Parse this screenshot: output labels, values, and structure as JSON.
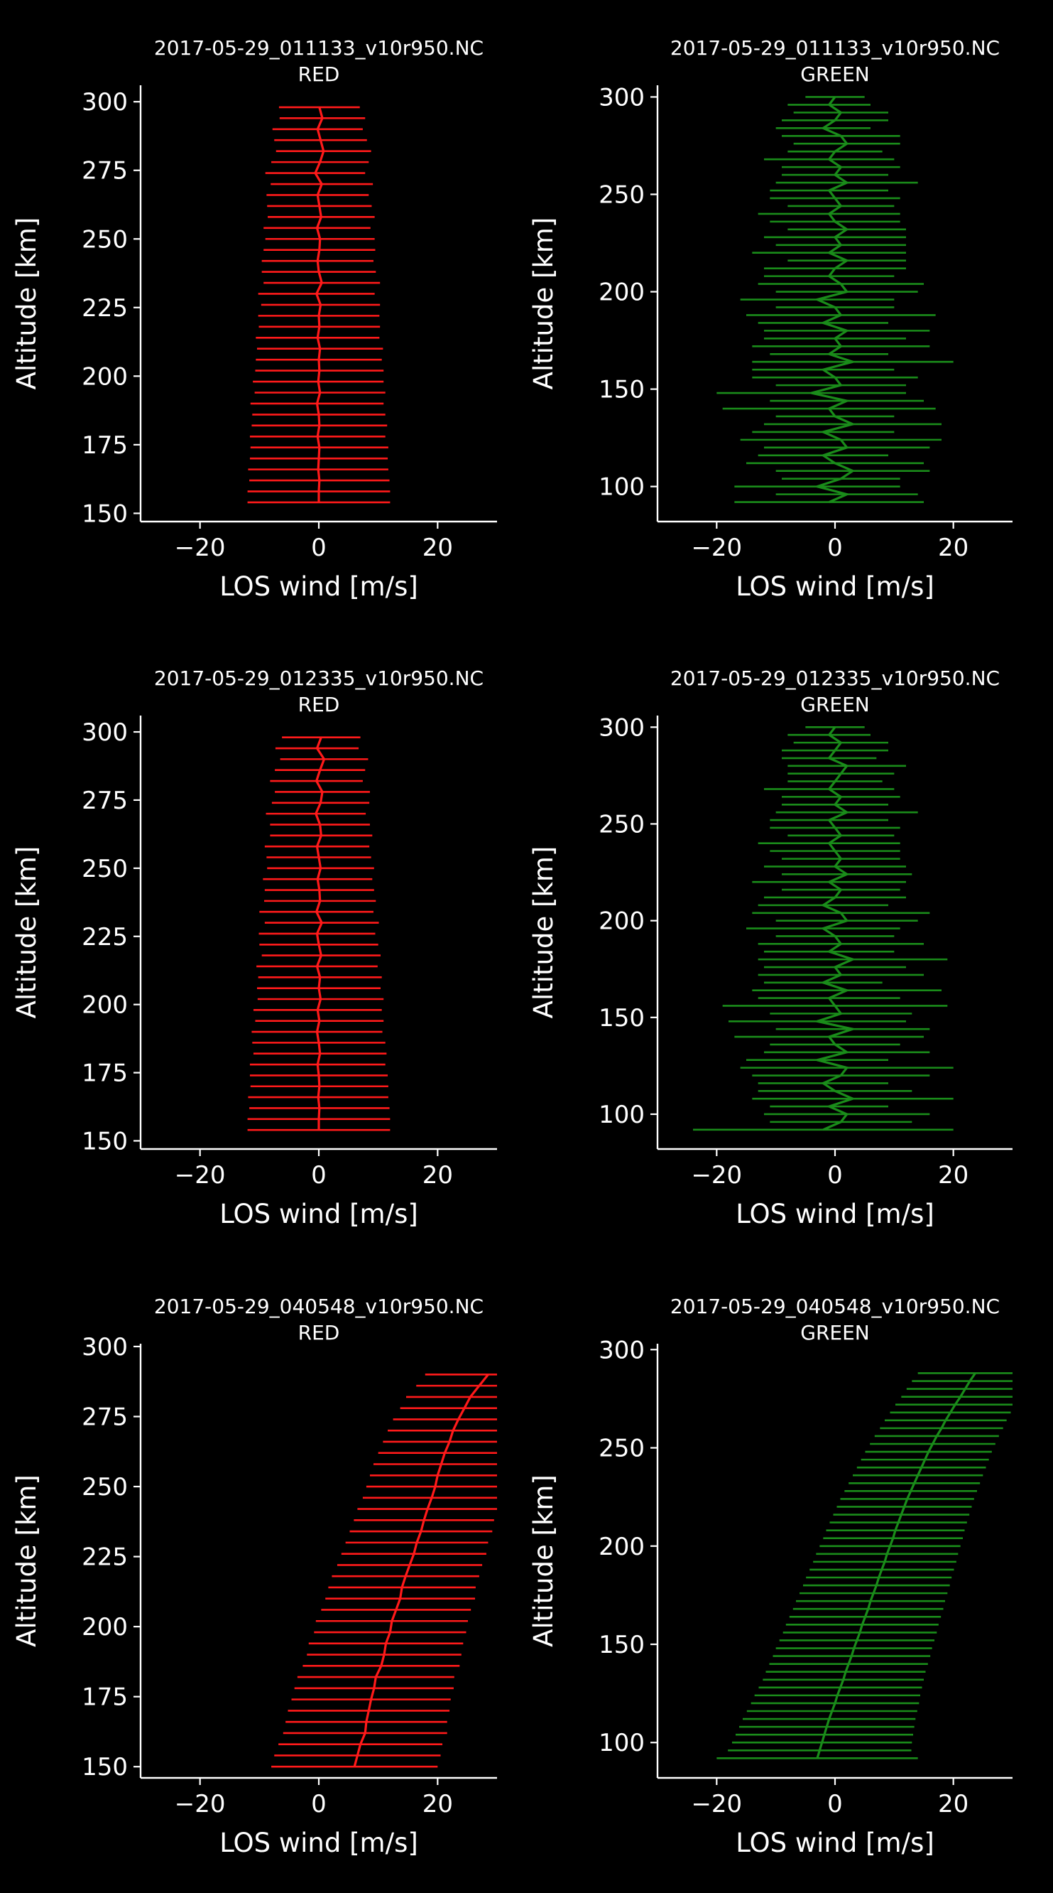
{
  "chart_data": [
    {
      "type": "line",
      "panel": 1,
      "title_file": "2017-05-29_011133_v10r950.NC",
      "title_channel": "RED",
      "xlabel": "LOS wind [m/s]",
      "ylabel": "Altitude [km]",
      "xlim": [
        -30,
        30
      ],
      "ylim": [
        147,
        306
      ],
      "xticks": [
        -20,
        0,
        20
      ],
      "yticks": [
        150,
        175,
        200,
        225,
        250,
        275,
        300
      ],
      "color": "#ff1a1a",
      "altitude": [
        154,
        158,
        162,
        166,
        170,
        174,
        178,
        182,
        186,
        190,
        194,
        198,
        202,
        206,
        210,
        214,
        218,
        222,
        226,
        230,
        234,
        238,
        242,
        246,
        250,
        254,
        258,
        262,
        266,
        270,
        274,
        278,
        282,
        286,
        290,
        294,
        298
      ],
      "wind": [
        0,
        0,
        0.1,
        -0.1,
        0,
        0.1,
        -0.2,
        0.1,
        0,
        -0.3,
        0.2,
        -0.1,
        0.1,
        0,
        0.2,
        -0.2,
        0.1,
        0,
        0.3,
        -0.4,
        0.5,
        0,
        -0.2,
        0.1,
        0.2,
        -0.3,
        0.4,
        0.1,
        -0.2,
        0.5,
        -0.6,
        0.2,
        0.8,
        0.3,
        -0.2,
        0.6,
        0.1
      ],
      "error": [
        12,
        12,
        11.8,
        11.8,
        11.6,
        11.6,
        11.4,
        11.4,
        11.2,
        11.2,
        11,
        11,
        10.8,
        10.6,
        10.6,
        10.4,
        10.2,
        10.2,
        10,
        9.8,
        9.8,
        9.6,
        9.4,
        9.4,
        9.2,
        9,
        9,
        8.8,
        8.6,
        8.6,
        8.4,
        8.2,
        8,
        7.8,
        7.6,
        7.2,
        6.8
      ]
    },
    {
      "type": "line",
      "panel": 2,
      "title_file": "2017-05-29_011133_v10r950.NC",
      "title_channel": "GREEN",
      "xlabel": "LOS wind [m/s]",
      "ylabel": "Altitude [km]",
      "xlim": [
        -30,
        30
      ],
      "ylim": [
        82,
        306
      ],
      "xticks": [
        -20,
        0,
        20
      ],
      "yticks": [
        100,
        150,
        200,
        250,
        300
      ],
      "color": "#1a8c1a",
      "altitude": [
        92,
        96,
        100,
        104,
        108,
        112,
        116,
        120,
        124,
        128,
        132,
        136,
        140,
        144,
        148,
        152,
        156,
        160,
        164,
        168,
        172,
        176,
        180,
        184,
        188,
        192,
        196,
        200,
        204,
        208,
        212,
        216,
        220,
        224,
        228,
        232,
        236,
        240,
        244,
        248,
        252,
        256,
        260,
        264,
        268,
        272,
        276,
        280,
        284,
        288,
        292,
        296,
        300
      ],
      "wind": [
        -1,
        2,
        -3,
        1,
        3,
        0,
        -2,
        2,
        1,
        -2,
        3,
        0,
        -1,
        2,
        -4,
        1,
        0,
        -2,
        3,
        -1,
        1,
        0,
        2,
        -2,
        1,
        0,
        -3,
        2,
        1,
        -1,
        0,
        2,
        -1,
        1,
        0,
        2,
        0,
        -1,
        1,
        0,
        -1,
        2,
        0,
        1,
        -1,
        0,
        2,
        1,
        -2,
        0,
        1,
        -1,
        0
      ],
      "error": [
        16,
        12,
        14,
        10,
        13,
        15,
        11,
        14,
        17,
        12,
        15,
        10,
        18,
        13,
        16,
        11,
        14,
        12,
        17,
        10,
        15,
        12,
        14,
        11,
        16,
        10,
        13,
        12,
        14,
        11,
        12,
        10,
        13,
        11,
        12,
        10,
        11,
        12,
        9,
        11,
        10,
        12,
        9,
        10,
        11,
        8,
        9,
        10,
        8,
        9,
        8,
        7,
        5
      ]
    },
    {
      "type": "line",
      "panel": 3,
      "title_file": "2017-05-29_012335_v10r950.NC",
      "title_channel": "RED",
      "xlabel": "LOS wind [m/s]",
      "ylabel": "Altitude [km]",
      "xlim": [
        -30,
        30
      ],
      "ylim": [
        147,
        306
      ],
      "xticks": [
        -20,
        0,
        20
      ],
      "yticks": [
        150,
        175,
        200,
        225,
        250,
        275,
        300
      ],
      "color": "#ff1a1a",
      "altitude": [
        154,
        158,
        162,
        166,
        170,
        174,
        178,
        182,
        186,
        190,
        194,
        198,
        202,
        206,
        210,
        214,
        218,
        222,
        226,
        230,
        234,
        238,
        242,
        246,
        250,
        254,
        258,
        262,
        266,
        270,
        274,
        278,
        282,
        286,
        290,
        294,
        298
      ],
      "wind": [
        0,
        0,
        0.1,
        -0.1,
        0.1,
        0,
        -0.2,
        0.2,
        0,
        -0.3,
        0.1,
        -0.2,
        0.3,
        0,
        0.2,
        -0.3,
        0.4,
        0,
        -0.3,
        0.5,
        -0.4,
        0.2,
        0.1,
        -0.2,
        0.3,
        0,
        -0.3,
        0.4,
        0.2,
        -0.5,
        0.3,
        0.6,
        -0.4,
        0.2,
        0.9,
        -0.3,
        0.4
      ],
      "error": [
        12,
        12,
        11.8,
        11.8,
        11.6,
        11.6,
        11.4,
        11.2,
        11.2,
        11,
        10.8,
        10.8,
        10.6,
        10.4,
        10.4,
        10.2,
        10,
        10,
        9.8,
        9.6,
        9.6,
        9.4,
        9.2,
        9.2,
        9,
        8.8,
        8.8,
        8.6,
        8.4,
        8.4,
        8.2,
        8,
        7.8,
        7.6,
        7.4,
        7,
        6.6
      ]
    },
    {
      "type": "line",
      "panel": 4,
      "title_file": "2017-05-29_012335_v10r950.NC",
      "title_channel": "GREEN",
      "xlabel": "LOS wind [m/s]",
      "ylabel": "Altitude [km]",
      "xlim": [
        -30,
        30
      ],
      "ylim": [
        82,
        306
      ],
      "xticks": [
        -20,
        0,
        20
      ],
      "yticks": [
        100,
        150,
        200,
        250,
        300
      ],
      "color": "#1a8c1a",
      "altitude": [
        92,
        96,
        100,
        104,
        108,
        112,
        116,
        120,
        124,
        128,
        132,
        136,
        140,
        144,
        148,
        152,
        156,
        160,
        164,
        168,
        172,
        176,
        180,
        184,
        188,
        192,
        196,
        200,
        204,
        208,
        212,
        216,
        220,
        224,
        228,
        232,
        236,
        240,
        244,
        248,
        252,
        256,
        260,
        264,
        268,
        272,
        276,
        280,
        284,
        288,
        292,
        296,
        300
      ],
      "wind": [
        -2,
        1,
        2,
        -1,
        3,
        0,
        -2,
        1,
        2,
        -3,
        2,
        0,
        -1,
        3,
        -3,
        1,
        0,
        -1,
        2,
        -2,
        1,
        0,
        3,
        -1,
        1,
        0,
        -2,
        2,
        1,
        -2,
        0,
        1,
        -1,
        2,
        0,
        1,
        0,
        -1,
        1,
        0,
        -1,
        2,
        0,
        1,
        -1,
        0,
        1,
        2,
        -1,
        0,
        1,
        -1,
        0
      ],
      "error": [
        22,
        12,
        14,
        10,
        17,
        13,
        11,
        15,
        18,
        12,
        14,
        11,
        16,
        13,
        15,
        12,
        19,
        12,
        16,
        10,
        14,
        12,
        16,
        11,
        14,
        10,
        13,
        12,
        15,
        11,
        12,
        10,
        13,
        11,
        12,
        10,
        11,
        12,
        9,
        11,
        10,
        12,
        9,
        10,
        11,
        8,
        9,
        10,
        8,
        9,
        8,
        7,
        5
      ]
    },
    {
      "type": "line",
      "panel": 5,
      "title_file": "2017-05-29_040548_v10r950.NC",
      "title_channel": "RED",
      "xlabel": "LOS wind [m/s]",
      "ylabel": "Altitude [km]",
      "xlim": [
        -30,
        30
      ],
      "ylim": [
        146,
        301
      ],
      "xticks": [
        -20,
        0,
        20
      ],
      "yticks": [
        150,
        175,
        200,
        225,
        250,
        275,
        300
      ],
      "color": "#ff1a1a",
      "altitude": [
        150,
        154,
        158,
        162,
        166,
        170,
        174,
        178,
        182,
        186,
        190,
        194,
        198,
        202,
        206,
        210,
        214,
        218,
        222,
        226,
        230,
        234,
        238,
        242,
        246,
        250,
        254,
        258,
        262,
        266,
        270,
        274,
        278,
        282,
        286,
        290
      ],
      "wind": [
        6,
        6.5,
        7,
        7.8,
        8,
        8.4,
        8.8,
        9.3,
        9.6,
        10.5,
        11,
        11.3,
        12,
        12.3,
        13,
        13.7,
        14,
        14.6,
        15.3,
        16,
        16.5,
        17.2,
        17.7,
        18.3,
        19,
        19.6,
        20,
        20.6,
        21.2,
        22,
        22.6,
        23.5,
        24.5,
        25.5,
        27,
        28.5
      ],
      "error": [
        14,
        14,
        13.8,
        13.8,
        13.6,
        13.6,
        13.4,
        13.4,
        13.2,
        13.2,
        13,
        13,
        12.8,
        12.8,
        12.6,
        12.6,
        12.4,
        12.4,
        12.2,
        12.2,
        12,
        12,
        11.8,
        11.8,
        11.6,
        11.6,
        11.4,
        11.4,
        11.2,
        11.2,
        11,
        11,
        10.8,
        10.8,
        10.6,
        10.6
      ]
    },
    {
      "type": "line",
      "panel": 6,
      "title_file": "2017-05-29_040548_v10r950.NC",
      "title_channel": "GREEN",
      "xlabel": "LOS wind [m/s]",
      "ylabel": "Altitude [km]",
      "xlim": [
        -30,
        30
      ],
      "ylim": [
        82,
        303
      ],
      "xticks": [
        -20,
        0,
        20
      ],
      "yticks": [
        100,
        150,
        200,
        250,
        300
      ],
      "color": "#1a8c1a",
      "altitude": [
        92,
        96,
        100,
        104,
        108,
        112,
        116,
        120,
        124,
        128,
        132,
        136,
        140,
        144,
        148,
        152,
        156,
        160,
        164,
        168,
        172,
        176,
        180,
        184,
        188,
        192,
        196,
        200,
        204,
        208,
        212,
        216,
        220,
        224,
        228,
        232,
        236,
        240,
        244,
        248,
        252,
        256,
        260,
        264,
        268,
        272,
        276,
        280,
        284,
        288
      ],
      "wind": [
        -3,
        -2.6,
        -2.2,
        -1.8,
        -1.4,
        -1,
        -0.5,
        0,
        0.4,
        0.9,
        1.4,
        1.8,
        2.3,
        2.8,
        3.2,
        3.7,
        4.2,
        4.6,
        5.1,
        5.6,
        6,
        6.5,
        7,
        7.4,
        7.9,
        8.4,
        8.8,
        9.3,
        9.8,
        10.2,
        10.7,
        11.2,
        11.7,
        12.2,
        12.8,
        13.4,
        14,
        14.6,
        15.2,
        15.8,
        16.5,
        17.2,
        18,
        18.7,
        19.5,
        20.3,
        21.2,
        22,
        22.8,
        23.7
      ],
      "error": [
        17,
        15.5,
        15.2,
        15,
        14.8,
        14.6,
        14.4,
        14.2,
        14,
        13.8,
        13.6,
        13.5,
        13.4,
        13.3,
        13.2,
        13.1,
        13,
        12.9,
        12.8,
        12.7,
        12.6,
        12.5,
        12.4,
        12.3,
        12.2,
        12.1,
        12,
        11.9,
        11.8,
        11.7,
        11.6,
        11.5,
        11.4,
        11.3,
        11.2,
        11.1,
        11,
        10.9,
        10.8,
        10.7,
        10.6,
        10.5,
        10.4,
        10.3,
        10.2,
        10.1,
        10,
        9.9,
        9.8,
        9.7
      ]
    }
  ]
}
